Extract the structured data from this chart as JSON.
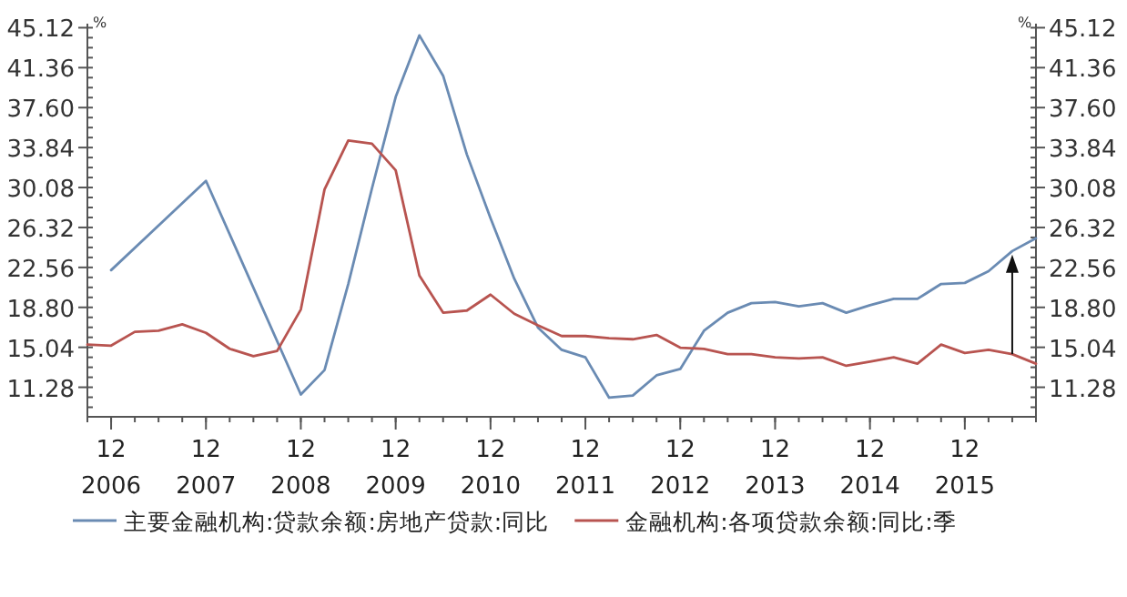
{
  "chart_data": {
    "type": "line",
    "ylabel": "%",
    "y2label": "%",
    "legend": "bottom",
    "grid": false,
    "marker": "none",
    "line_style": "solid",
    "xlim": [
      "2006-09",
      "2016-09"
    ],
    "xticks": [
      {
        "value": "2006-12",
        "label": "12\n2006"
      },
      {
        "value": "2007-12",
        "label": "12\n2007"
      },
      {
        "value": "2008-12",
        "label": "12\n2008"
      },
      {
        "value": "2009-12",
        "label": "12\n2009"
      },
      {
        "value": "2010-12",
        "label": "12\n2010"
      },
      {
        "value": "2011-12",
        "label": "12\n2011"
      },
      {
        "value": "2012-12",
        "label": "12\n2012"
      },
      {
        "value": "2013-12",
        "label": "12\n2013"
      },
      {
        "value": "2014-12",
        "label": "12\n2014"
      },
      {
        "value": "2015-12",
        "label": "12\n2015"
      }
    ],
    "ylim": [
      8.5,
      45.5
    ],
    "yticks": [
      11.28,
      15.04,
      {
        "value": 18.8,
        "label": "18.80"
      },
      22.56,
      26.32,
      30.08,
      33.84,
      {
        "value": 37.6,
        "label": "37.60"
      },
      41.36,
      45.12
    ],
    "y2lim": [
      8.5,
      45.5
    ],
    "y2ticks": [
      11.28,
      15.04,
      {
        "value": 18.8,
        "label": "18.80"
      },
      22.56,
      26.32,
      30.08,
      33.84,
      {
        "value": 37.6,
        "label": "37.60"
      },
      41.36,
      45.12
    ],
    "series": [
      {
        "name": "主要金融机构:贷款余额:房地产贷款:同比",
        "color": "#6a8bb3",
        "x": [
          "2006-12",
          "2007-12",
          "2008-12",
          "2009-03",
          "2009-06",
          "2009-09",
          "2009-12",
          "2010-03",
          "2010-06",
          "2010-09",
          "2010-12",
          "2011-03",
          "2011-06",
          "2011-09",
          "2011-12",
          "2012-03",
          "2012-06",
          "2012-09",
          "2012-12",
          "2013-03",
          "2013-06",
          "2013-09",
          "2013-12",
          "2014-03",
          "2014-06",
          "2014-09",
          "2014-12",
          "2015-03",
          "2015-06",
          "2015-09",
          "2015-12",
          "2016-03",
          "2016-06",
          "2016-09"
        ],
        "values": [
          22.3,
          30.7,
          10.6,
          12.9,
          21.0,
          30.0,
          38.6,
          44.4,
          40.6,
          33.2,
          27.2,
          21.5,
          16.9,
          14.8,
          14.1,
          10.3,
          10.5,
          12.4,
          13.0,
          16.6,
          18.3,
          19.2,
          19.3,
          18.9,
          19.2,
          18.3,
          19.0,
          19.6,
          19.6,
          21.0,
          21.1,
          22.2,
          24.1,
          25.3
        ]
      },
      {
        "name": "金融机构:各项贷款余额:同比:季",
        "color": "#b85450",
        "x": [
          "2006-09",
          "2006-12",
          "2007-03",
          "2007-06",
          "2007-09",
          "2007-12",
          "2008-03",
          "2008-06",
          "2008-09",
          "2008-12",
          "2009-03",
          "2009-06",
          "2009-09",
          "2009-12",
          "2010-03",
          "2010-06",
          "2010-09",
          "2010-12",
          "2011-03",
          "2011-06",
          "2011-09",
          "2011-12",
          "2012-03",
          "2012-06",
          "2012-09",
          "2012-12",
          "2013-03",
          "2013-06",
          "2013-09",
          "2013-12",
          "2014-03",
          "2014-06",
          "2014-09",
          "2014-12",
          "2015-03",
          "2015-06",
          "2015-09",
          "2015-12",
          "2016-03",
          "2016-06",
          "2016-09"
        ],
        "values": [
          15.3,
          15.2,
          16.5,
          16.6,
          17.2,
          16.4,
          14.9,
          14.2,
          14.7,
          18.6,
          29.9,
          34.5,
          34.2,
          31.7,
          21.8,
          18.3,
          18.5,
          20.0,
          18.2,
          17.1,
          16.1,
          16.1,
          15.9,
          15.8,
          16.2,
          15.0,
          14.9,
          14.4,
          14.4,
          14.1,
          14.0,
          14.1,
          13.3,
          13.7,
          14.1,
          13.5,
          15.3,
          14.5,
          14.8,
          14.4,
          13.5
        ]
      }
    ]
  }
}
